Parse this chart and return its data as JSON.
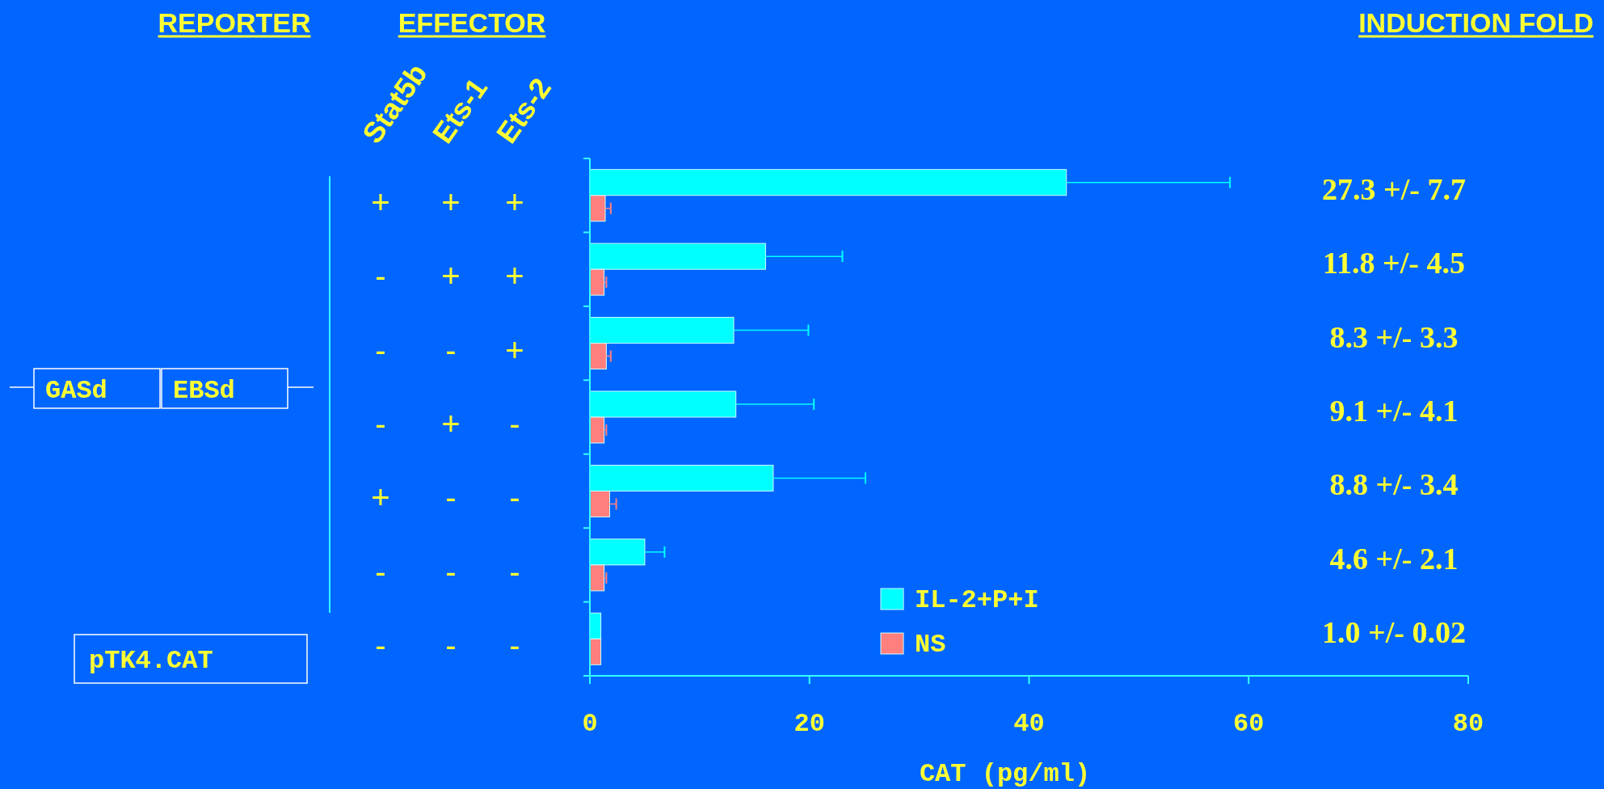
{
  "chart_data": [
    {
      "type": "other",
      "title": "REPORTER",
      "annotations": [
        "GASd",
        "EBSd",
        "pTK4.CAT"
      ]
    },
    {
      "type": "other",
      "title": "EFFECTOR",
      "categories": [
        "Stat5b",
        "Ets-1",
        "Ets-2"
      ],
      "cell_labels": [
        [
          "+",
          "+",
          "+"
        ],
        [
          "-",
          "+",
          "+"
        ],
        [
          "-",
          "-",
          "+"
        ],
        [
          "-",
          "+",
          "-"
        ],
        [
          "+",
          "-",
          "-"
        ],
        [
          "-",
          "-",
          "-"
        ],
        [
          "-",
          "-",
          "-"
        ]
      ]
    },
    {
      "type": "bar",
      "orientation": "horizontal",
      "categories": [
        null,
        null,
        null,
        null,
        null,
        null,
        null
      ],
      "series": [
        {
          "name": "IL-2+P+I",
          "color": "#00ffff",
          "values": [
            43.4,
            16.0,
            13.1,
            13.3,
            16.7,
            5.0,
            1.0
          ],
          "errors": [
            [
              43.4,
              58.3
            ],
            [
              16.0,
              23.0
            ],
            [
              13.1,
              19.9
            ],
            [
              13.3,
              20.4
            ],
            [
              16.7,
              25.1
            ],
            [
              5.0,
              6.8
            ],
            null
          ]
        },
        {
          "name": "NS",
          "color": "#ff7f7f",
          "values": [
            1.4,
            1.3,
            1.5,
            1.3,
            1.8,
            1.3,
            1.0
          ],
          "errors": [
            [
              1.4,
              1.9
            ],
            [
              1.3,
              1.5
            ],
            [
              1.5,
              1.9
            ],
            [
              1.3,
              1.5
            ],
            [
              1.8,
              2.4
            ],
            [
              1.3,
              1.5
            ],
            null
          ]
        }
      ],
      "xlabel": "CAT (pg/ml)",
      "xlim": [
        0,
        80
      ],
      "xticks": [
        0,
        20,
        40,
        60,
        80
      ],
      "legend": "bottom",
      "grid": false
    },
    {
      "type": "other",
      "title": "INDUCTION FOLD",
      "annotations": [
        "27.3 +/- 7.7",
        "11.8 +/- 4.5",
        "8.3 +/- 3.3",
        "9.1 +/- 4.1",
        "8.8 +/- 3.4",
        "4.6 +/- 2.1",
        "1.0 +/- 0.02"
      ]
    }
  ]
}
